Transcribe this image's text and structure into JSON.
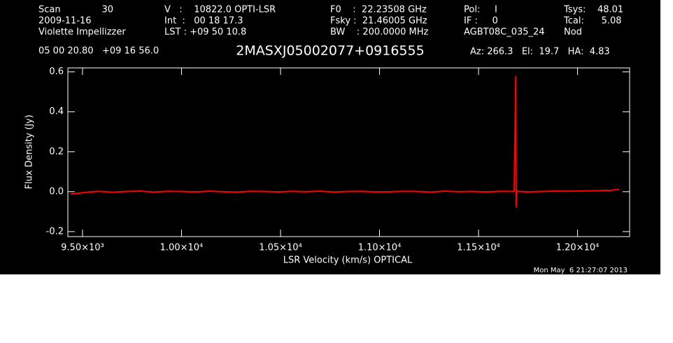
{
  "header": {
    "rows": [
      [
        {
          "text": "Scan"
        },
        {
          "text": "30"
        },
        {
          "text": "V   :    10822.0 OPTI-LSR"
        },
        {
          "text": "F0    :  22.23508 GHz"
        },
        {
          "text": "Pol:     I"
        },
        {
          "text": "Tsys:    48.01"
        }
      ],
      [
        {
          "text": "2009-11-16"
        },
        {
          "text": "Int  :   00 18 17.3"
        },
        {
          "text": "Fsky :  21.46005 GHz"
        },
        {
          "text": "IF :     0"
        },
        {
          "text": "Tcal:      5.08"
        }
      ],
      [
        {
          "text": "Violette Impellizzer"
        },
        {
          "text": "LST : +09 50 10.8"
        },
        {
          "text": "BW    : 200.0000 MHz"
        },
        {
          "text": "AGBT08C_035_24"
        },
        {
          "text": "Nod"
        }
      ]
    ],
    "coords": "05 00 20.80   +09 16 56.0",
    "source": "2MASXJ05002077+0916555",
    "pointing": "Az: 266.3   El:  19.7   HA:  4.83",
    "timestamp": "Mon May  6 21:27:07 2013"
  },
  "chart_data": {
    "type": "line",
    "x_label": "LSR Velocity (km/s) OPTICAL",
    "y_label": "Flux Density (Jy)",
    "color": "#ff0000",
    "xlim": [
      9426,
      12263
    ],
    "ylim": [
      -0.225,
      0.62
    ],
    "xticks": [
      {
        "value": 9500,
        "label": "9.50×10³"
      },
      {
        "value": 10000,
        "label": "1.00×10⁴"
      },
      {
        "value": 10500,
        "label": "1.05×10⁴"
      },
      {
        "value": 11000,
        "label": "1.10×10⁴"
      },
      {
        "value": 11500,
        "label": "1.15×10⁴"
      },
      {
        "value": 12000,
        "label": "1.20×10⁴"
      }
    ],
    "yticks": [
      -0.2,
      {
        "value": 0,
        "label": "0.0"
      },
      0.2,
      0.4,
      0.6
    ],
    "x": [
      9440,
      9510,
      9580,
      9650,
      9720,
      9790,
      9860,
      9930,
      10000,
      10070,
      10140,
      10210,
      10280,
      10350,
      10420,
      10490,
      10560,
      10630,
      10700,
      10770,
      10840,
      10910,
      10980,
      11050,
      11120,
      11190,
      11260,
      11330,
      11400,
      11470,
      11540,
      11610,
      11680,
      11688,
      11690,
      11692,
      11695,
      11750,
      11820,
      11890,
      11960,
      12030,
      12100,
      12170,
      12210
    ],
    "values": [
      -0.012,
      -0.004,
      0.002,
      -0.003,
      0.001,
      0.003,
      -0.002,
      0.002,
      0.001,
      -0.001,
      0.003,
      0,
      -0.002,
      0.002,
      0.001,
      -0.001,
      0.002,
      0,
      0.003,
      -0.002,
      0.001,
      0.002,
      -0.001,
      0,
      0.002,
      0.001,
      -0.002,
      0.003,
      0,
      0.001,
      -0.001,
      0.002,
      0.001,
      0.58,
      -0.08,
      0.01,
      0.002,
      -0.001,
      0.001,
      0.003,
      0.002,
      0.004,
      0.005,
      0.007,
      0.012
    ]
  }
}
